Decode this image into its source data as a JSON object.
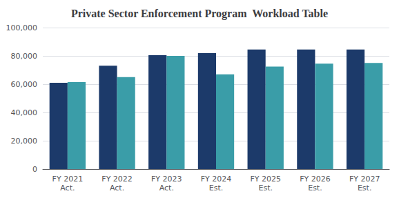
{
  "chart_data": {
    "type": "bar",
    "title": "Private Sector Enforcement Program  Workload Table",
    "categories": [
      "FY 2021\nAct.",
      "FY 2022\nAct.",
      "FY 2023\nAct.",
      "FY 2024\nEst.",
      "FY 2025\nEst.",
      "FY 2026\nEst.",
      "FY 2027\nEst."
    ],
    "series": [
      {
        "color": "#1C3A6A",
        "values": [
          61000,
          73000,
          80500,
          82000,
          84500,
          84500,
          84500
        ]
      },
      {
        "color": "#3A9DA8",
        "values": [
          61500,
          65000,
          80000,
          67000,
          72500,
          74500,
          75000
        ]
      }
    ],
    "ylim": [
      0,
      100000
    ],
    "yticks": [
      0,
      {
        "value": 20000,
        "label": "20,000"
      },
      {
        "value": 40000,
        "label": "40,000"
      },
      {
        "value": 60000,
        "label": "60,000"
      },
      {
        "value": 80000,
        "label": "80,000"
      },
      {
        "value": 100000,
        "label": "100,000"
      }
    ],
    "grid": true
  }
}
